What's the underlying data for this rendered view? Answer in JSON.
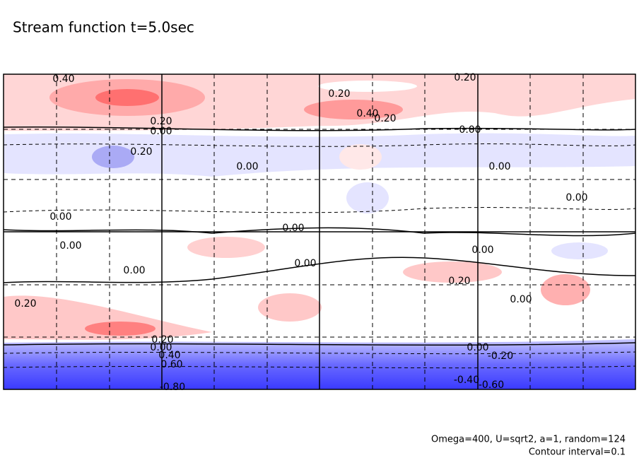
{
  "chart_data": {
    "type": "contour",
    "title": "Stream function t=5.0sec",
    "notes": [
      "Omega=400, U=sqrt2, a=1, random=124",
      "Contour interval=0.1"
    ],
    "levels": [
      0.4,
      0.2,
      0.2,
      0.4,
      0.2,
      0.2,
      0,
      0,
      0.2,
      0,
      0,
      0,
      0,
      0,
      0,
      0,
      0,
      0.2,
      0,
      0.2,
      0,
      0.2,
      0,
      0.4,
      0.6,
      0,
      -0.2,
      -0.4,
      -0.6,
      -0.8
    ],
    "value_labels": [
      "0.40",
      "0.20",
      "0.20",
      "0.40",
      "0.20",
      "0.20",
      "0.00",
      "0.00",
      "0.20",
      "0.00",
      "0.00",
      "0.00",
      "0.00",
      "0.00",
      "0.00",
      "0.00",
      "0.00",
      "0.20",
      "0.00",
      "0.20",
      "0.00",
      "0.20",
      "0.00",
      "0.40",
      "0.60",
      "0.00",
      "-0.20",
      "-0.40",
      "-0.60",
      "-0.80"
    ]
  }
}
